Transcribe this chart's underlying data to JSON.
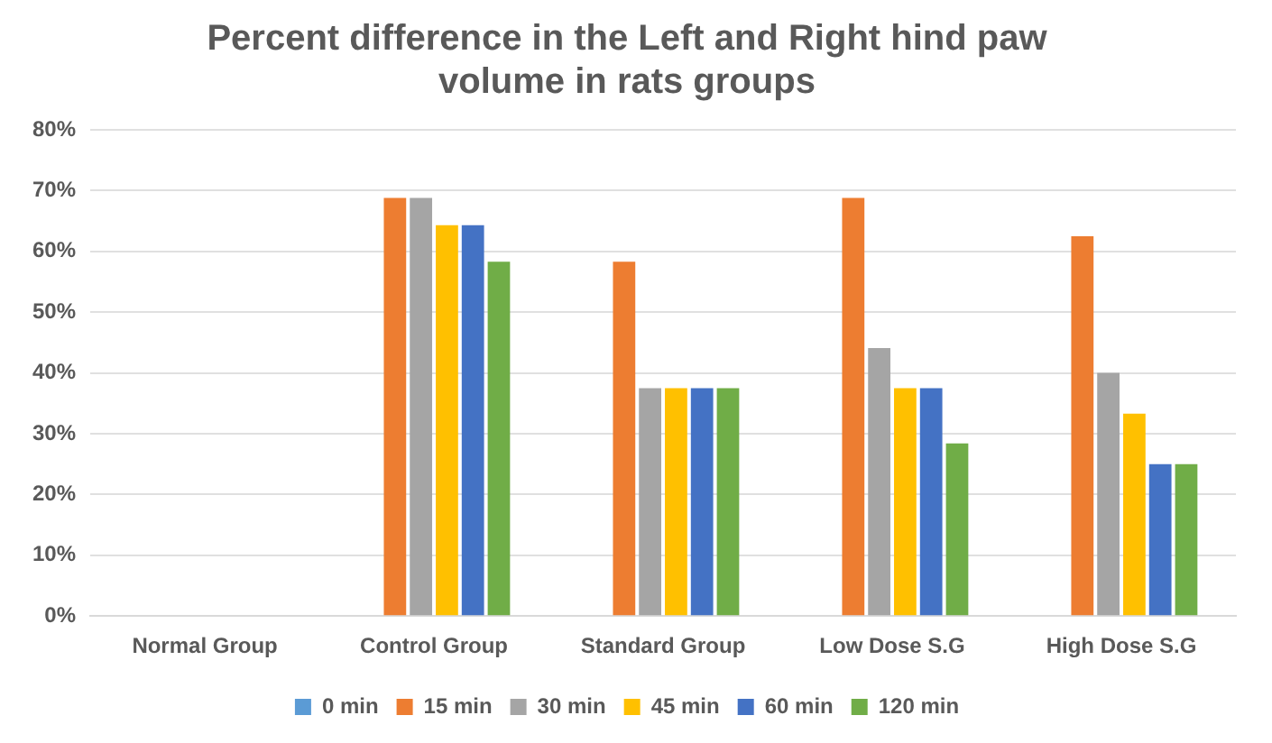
{
  "chart_data": {
    "type": "bar",
    "title": "Percent difference in the Left and Right hind paw volume in rats groups",
    "categories": [
      "Normal Group",
      "Control Group",
      "Standard Group",
      "Low Dose S.G",
      "High Dose S.G"
    ],
    "series": [
      {
        "name": "0 min",
        "color": "#5b9bd5",
        "values": [
          0,
          0,
          0,
          0,
          0
        ]
      },
      {
        "name": "15 min",
        "color": "#ed7d31",
        "values": [
          0,
          68.8,
          58.3,
          68.8,
          62.5
        ]
      },
      {
        "name": "30 min",
        "color": "#a5a5a5",
        "values": [
          0,
          68.8,
          37.5,
          44.1,
          40.0
        ]
      },
      {
        "name": "45 min",
        "color": "#ffc000",
        "values": [
          0,
          64.3,
          37.5,
          37.5,
          33.3
        ]
      },
      {
        "name": "60 min",
        "color": "#4472c4",
        "values": [
          0,
          64.3,
          37.5,
          37.5,
          25.0
        ]
      },
      {
        "name": "120 min",
        "color": "#70ad47",
        "values": [
          0,
          58.3,
          37.5,
          28.4,
          25.0
        ]
      }
    ],
    "ylim": [
      0,
      80
    ],
    "yticks": [
      {
        "value": 0,
        "label": "0%"
      },
      {
        "value": 10,
        "label": "10%"
      },
      {
        "value": 20,
        "label": "20%"
      },
      {
        "value": 30,
        "label": "30%"
      },
      {
        "value": 40,
        "label": "40%"
      },
      {
        "value": 50,
        "label": "50%"
      },
      {
        "value": 60,
        "label": "60%"
      },
      {
        "value": 70,
        "label": "70%"
      },
      {
        "value": 80,
        "label": "80%"
      }
    ],
    "grid": "y",
    "legend": "bottom"
  }
}
